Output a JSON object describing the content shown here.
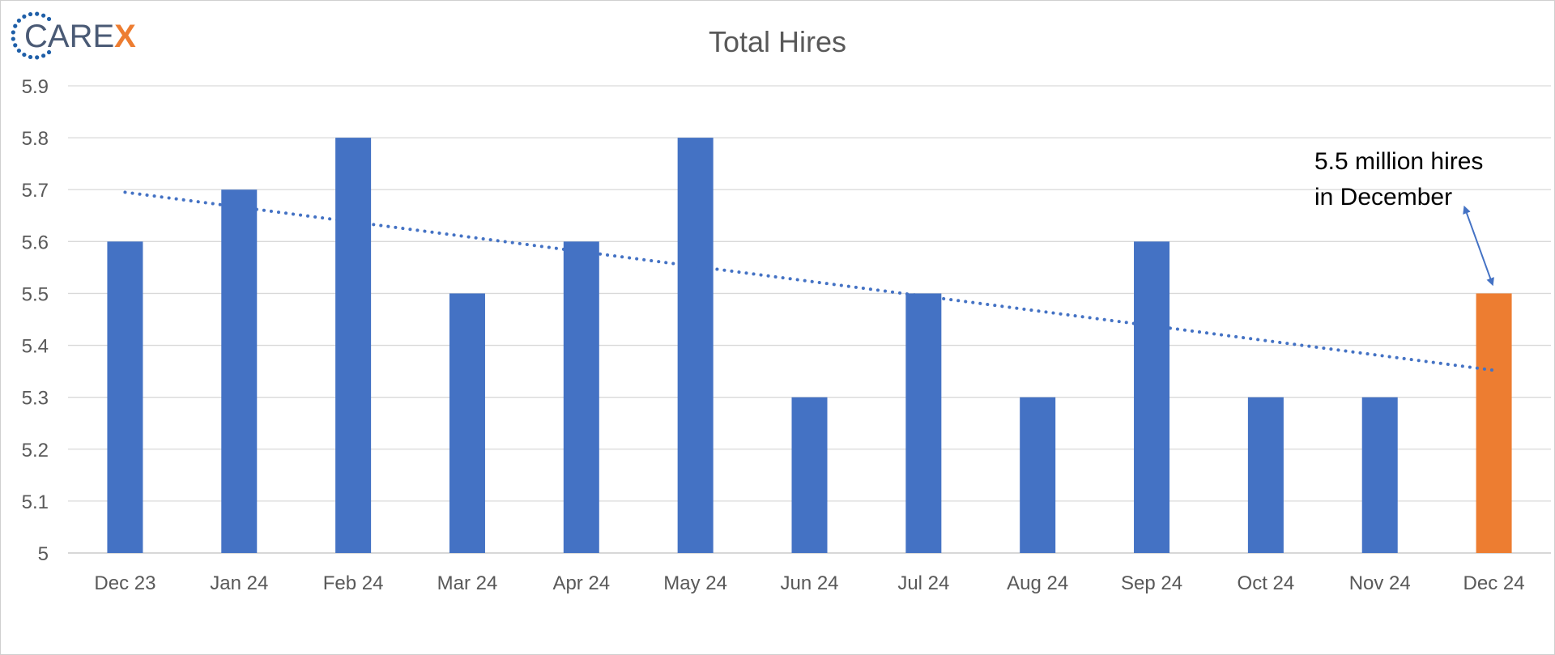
{
  "logo": {
    "text_main": "CARE",
    "text_accent": "X",
    "main_color": "#4a5a75",
    "accent_color": "#ED7D31",
    "dot_color": "#1f5fa8"
  },
  "chart_data": {
    "type": "bar",
    "title": "Total Hires",
    "xlabel": "",
    "ylabel": "",
    "categories": [
      "Dec 23",
      "Jan 24",
      "Feb 24",
      "Mar 24",
      "Apr 24",
      "May 24",
      "Jun 24",
      "Jul 24",
      "Aug 24",
      "Sep 24",
      "Oct 24",
      "Nov 24",
      "Dec 24"
    ],
    "values": [
      5.6,
      5.7,
      5.8,
      5.5,
      5.6,
      5.8,
      5.3,
      5.5,
      5.3,
      5.6,
      5.3,
      5.3,
      5.5
    ],
    "bar_colors": [
      "#4472C4",
      "#4472C4",
      "#4472C4",
      "#4472C4",
      "#4472C4",
      "#4472C4",
      "#4472C4",
      "#4472C4",
      "#4472C4",
      "#4472C4",
      "#4472C4",
      "#4472C4",
      "#ED7D31"
    ],
    "ylim": [
      5,
      5.9
    ],
    "yticks": [
      "5",
      "5.1",
      "5.2",
      "5.3",
      "5.4",
      "5.5",
      "5.6",
      "5.7",
      "5.8",
      "5.9"
    ],
    "grid": true,
    "trendline": {
      "style": "dotted",
      "color": "#4472C4",
      "start": 5.695,
      "end": 5.352
    },
    "annotation": {
      "lines": [
        "5.5 million hires",
        "in December"
      ],
      "target_category": "Dec 24"
    }
  }
}
